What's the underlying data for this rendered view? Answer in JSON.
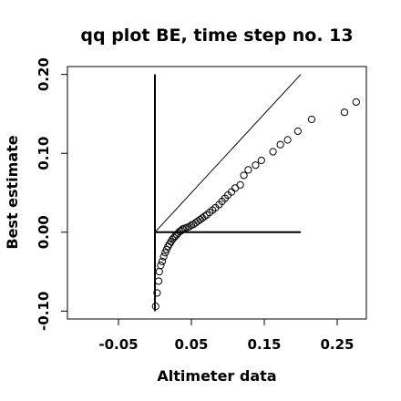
{
  "chart_data": {
    "type": "scatter",
    "title": "qq plot BE, time step no. 13",
    "xlabel": "Altimeter data",
    "ylabel": "Best estimate",
    "xlim": [
      -0.12,
      0.29
    ],
    "ylim": [
      -0.11,
      0.21
    ],
    "x_ticks": [
      -0.05,
      0.05,
      0.15,
      0.25
    ],
    "x_tick_labels": [
      "-0.05",
      "0.05",
      "0.15",
      "0.25"
    ],
    "y_ticks": [
      -0.1,
      0.0,
      0.1,
      0.2
    ],
    "y_tick_labels": [
      "-0.10",
      "0.00",
      "0.10",
      "0.20"
    ],
    "grid": false,
    "legend": "none",
    "colors": {
      "points": "#000000",
      "lines": "#000000",
      "background": "#ffffff"
    },
    "reference_lines": [
      {
        "kind": "identity",
        "x": [
          0.0,
          0.2
        ],
        "y": [
          0.0,
          0.2
        ]
      },
      {
        "kind": "horizontal",
        "x": [
          0.0,
          0.2
        ],
        "y": [
          0.0,
          0.0
        ]
      },
      {
        "kind": "vertical",
        "x": [
          0.0,
          0.0
        ],
        "y": [
          -0.1,
          0.2
        ]
      }
    ],
    "points": [
      [
        0.001,
        -0.094
      ],
      [
        0.003,
        -0.077
      ],
      [
        0.005,
        -0.062
      ],
      [
        0.006,
        -0.05
      ],
      [
        0.008,
        -0.042
      ],
      [
        0.01,
        -0.037
      ],
      [
        0.012,
        -0.031
      ],
      [
        0.014,
        -0.026
      ],
      [
        0.016,
        -0.022
      ],
      [
        0.018,
        -0.018
      ],
      [
        0.02,
        -0.015
      ],
      [
        0.022,
        -0.012
      ],
      [
        0.024,
        -0.009
      ],
      [
        0.026,
        -0.007
      ],
      [
        0.028,
        -0.005
      ],
      [
        0.03,
        -0.003
      ],
      [
        0.032,
        -0.001
      ],
      [
        0.034,
        0.001
      ],
      [
        0.036,
        0.002
      ],
      [
        0.038,
        0.004
      ],
      [
        0.041,
        0.005
      ],
      [
        0.044,
        0.006
      ],
      [
        0.047,
        0.007
      ],
      [
        0.05,
        0.009
      ],
      [
        0.053,
        0.01
      ],
      [
        0.056,
        0.012
      ],
      [
        0.059,
        0.014
      ],
      [
        0.062,
        0.016
      ],
      [
        0.065,
        0.018
      ],
      [
        0.068,
        0.02
      ],
      [
        0.071,
        0.022
      ],
      [
        0.075,
        0.025
      ],
      [
        0.079,
        0.028
      ],
      [
        0.083,
        0.031
      ],
      [
        0.088,
        0.035
      ],
      [
        0.092,
        0.039
      ],
      [
        0.096,
        0.043
      ],
      [
        0.1,
        0.047
      ],
      [
        0.105,
        0.051
      ],
      [
        0.11,
        0.056
      ],
      [
        0.117,
        0.06
      ],
      [
        0.122,
        0.072
      ],
      [
        0.128,
        0.079
      ],
      [
        0.138,
        0.085
      ],
      [
        0.146,
        0.091
      ],
      [
        0.162,
        0.102
      ],
      [
        0.172,
        0.111
      ],
      [
        0.182,
        0.117
      ],
      [
        0.196,
        0.128
      ],
      [
        0.215,
        0.143
      ],
      [
        0.26,
        0.152
      ],
      [
        0.276,
        0.165
      ]
    ]
  }
}
